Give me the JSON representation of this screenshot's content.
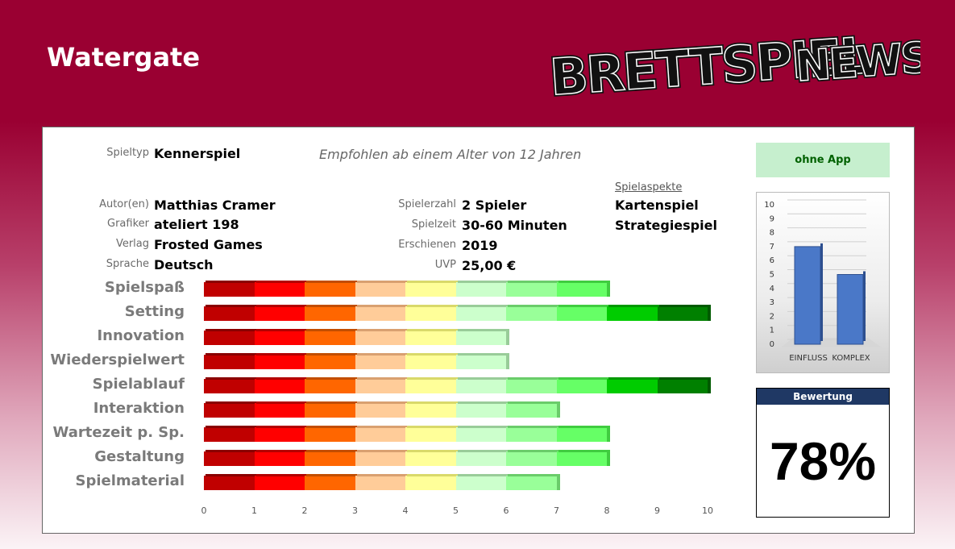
{
  "header": {
    "title": "Watergate",
    "logo_text_1": "BRETTSPIEL",
    "logo_text_2": "NEWS"
  },
  "info": {
    "spieltyp_label": "Spieltyp",
    "spieltyp": "Kennerspiel",
    "empfehlung": "Empfohlen ab einem Alter von 12 Jahren",
    "autor_label": "Autor(en)",
    "autor": "Matthias Cramer",
    "grafiker_label": "Grafiker",
    "grafiker": "ateliert 198",
    "verlag_label": "Verlag",
    "verlag": "Frosted Games",
    "sprache_label": "Sprache",
    "sprache": "Deutsch",
    "spielerzahl_label": "Spielerzahl",
    "spielerzahl": "2 Spieler",
    "spielzeit_label": "Spielzeit",
    "spielzeit": "30-60 Minuten",
    "erschienen_label": "Erschienen",
    "erschienen": "2019",
    "uvp_label": "UVP",
    "uvp": "25,00 €"
  },
  "aspekte": {
    "heading": "Spielaspekte",
    "items": [
      "Kartenspiel",
      "Strategiespiel"
    ]
  },
  "app": {
    "label": "ohne App"
  },
  "chart_data": [
    {
      "type": "bar",
      "orientation": "horizontal",
      "categories": [
        "Spielspaß",
        "Setting",
        "Innovation",
        "Wiederspielwert",
        "Spielablauf",
        "Interaktion",
        "Wartezeit p. Sp.",
        "Gestaltung",
        "Spielmaterial"
      ],
      "values": [
        8,
        10,
        6,
        6,
        10,
        7,
        8,
        8,
        7
      ],
      "xlim": [
        0,
        10
      ],
      "xticks": [
        "0",
        "1",
        "2",
        "3",
        "4",
        "5",
        "6",
        "7",
        "8",
        "9",
        "10"
      ],
      "segment_colors": [
        "#c00000",
        "#ff0000",
        "#ff6600",
        "#ffcc99",
        "#ffff99",
        "#ccffcc",
        "#99ff99",
        "#66ff66",
        "#00cc00",
        "#008000"
      ]
    },
    {
      "type": "bar",
      "categories": [
        "EINFLUSS",
        "KOMPLEX"
      ],
      "values": [
        7,
        5
      ],
      "ylim": [
        0,
        10
      ],
      "yticks": [
        "0",
        "1",
        "2",
        "3",
        "4",
        "5",
        "6",
        "7",
        "8",
        "9",
        "10"
      ],
      "bar_color": "#4a78c8"
    }
  ],
  "rating": {
    "label": "Bewertung",
    "value": "78%"
  },
  "colors": {
    "header_bg": "#9a0032",
    "rating_head_bg": "#1f3864",
    "app_bg": "#c6efce",
    "app_text": "#006100"
  }
}
